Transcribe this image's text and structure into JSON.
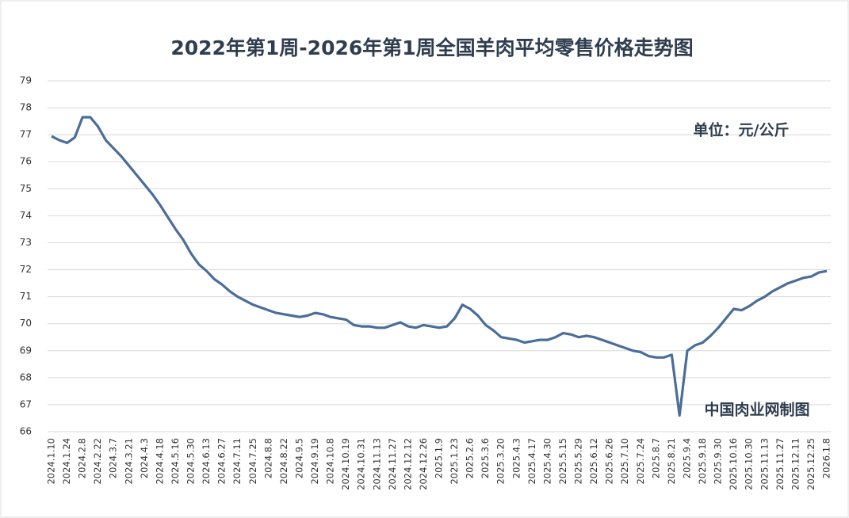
{
  "chart_data": {
    "type": "line",
    "title": "2022年第1周-2026年第1周全国羊肉平均零售价格走势图",
    "unit_note": "单位：元/公斤",
    "source_note": "中国肉业网制图",
    "categories": [
      "2024.1.10",
      null,
      "2024.1.24",
      null,
      "2024.2.8",
      null,
      "2024.2.22",
      null,
      "2024.3.7",
      null,
      "2024.3.21",
      null,
      "2024.4.3",
      null,
      "2024.4.18",
      null,
      "2024.5.16",
      null,
      "2024.5.30",
      null,
      "2024.6.13",
      null,
      "2024.6.27",
      null,
      "2024.7.11",
      null,
      "2024.7.25",
      null,
      "2024.8.8",
      null,
      "2024.8.22",
      null,
      "2024.9.5",
      null,
      "2024.9.19",
      null,
      "2024.10.8",
      null,
      "2024.10.19",
      null,
      "2024.10.31",
      null,
      "2024.11.13",
      null,
      "2024.11.27",
      null,
      "2024.12.12",
      null,
      "2024.12.26",
      null,
      "2025.1.9",
      null,
      "2025.1.23",
      null,
      "2025.2.6",
      null,
      "2025.3.6",
      null,
      "2025.3.20",
      null,
      "2025.4.3",
      null,
      "2025.4.17",
      null,
      "2025.4.30",
      null,
      "2025.5.15",
      null,
      "2025.5.29",
      null,
      "2025.6.12",
      null,
      "2025.6.26",
      null,
      "2025.7.10",
      null,
      "2025.7.24",
      null,
      "2025.8.7",
      null,
      "2025.8.21",
      null,
      "2025.9.4",
      null,
      "2025.9.18",
      null,
      "2025.9.30",
      null,
      "2025.10.16",
      null,
      "2025.10.30",
      null,
      "2025.11.13",
      null,
      "2025.11.27",
      null,
      "2025.12.11",
      null,
      "2025.12.25",
      null,
      "2026.1.8"
    ],
    "values": [
      76.95,
      76.8,
      76.7,
      76.9,
      77.65,
      77.65,
      77.3,
      76.8,
      76.5,
      76.2,
      75.85,
      75.5,
      75.15,
      74.8,
      74.4,
      73.95,
      73.5,
      73.1,
      72.6,
      72.2,
      71.95,
      71.65,
      71.45,
      71.2,
      71.0,
      70.85,
      70.7,
      70.6,
      70.5,
      70.4,
      70.35,
      70.3,
      70.25,
      70.3,
      70.4,
      70.35,
      70.25,
      70.2,
      70.15,
      69.95,
      69.9,
      69.9,
      69.85,
      69.85,
      69.95,
      70.05,
      69.9,
      69.85,
      69.95,
      69.9,
      69.85,
      69.9,
      70.2,
      70.7,
      70.55,
      70.3,
      69.95,
      69.75,
      69.5,
      69.45,
      69.4,
      69.3,
      69.35,
      69.4,
      69.4,
      69.5,
      69.65,
      69.6,
      69.5,
      69.55,
      69.5,
      69.4,
      69.3,
      69.2,
      69.1,
      69.0,
      68.95,
      68.8,
      68.75,
      68.75,
      68.85,
      66.6,
      69.0,
      69.2,
      69.3,
      69.55,
      69.85,
      70.2,
      70.55,
      70.5,
      70.65,
      70.85,
      71.0,
      71.2,
      71.35,
      71.5,
      71.6,
      71.7,
      71.75,
      71.9,
      71.95
    ],
    "color": "#4a6d9a",
    "ylim": [
      66,
      79
    ],
    "yticks": [
      66,
      67,
      68,
      69,
      70,
      71,
      72,
      73,
      74,
      75,
      76,
      77,
      78,
      79
    ],
    "grid": true
  }
}
